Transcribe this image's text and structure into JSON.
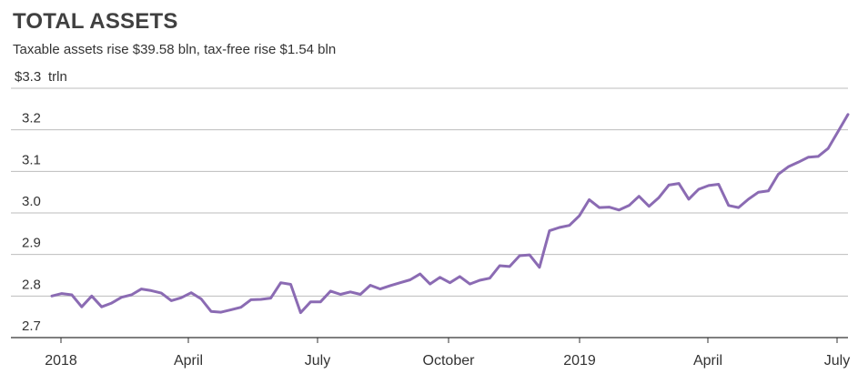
{
  "chart_data": {
    "type": "line",
    "title": "TOTAL ASSETS",
    "subtitle": "Taxable assets rise $39.58 bln, tax-free rise $1.54 bln",
    "y_unit_label": "trln",
    "y_tick_labels": [
      "2.7",
      "2.8",
      "2.9",
      "3.0",
      "3.1",
      "3.2",
      "$3.3"
    ],
    "y_ticks": [
      2.7,
      2.8,
      2.9,
      3.0,
      3.1,
      3.2,
      3.3
    ],
    "ylim": [
      2.7,
      3.3
    ],
    "x_tick_labels": [
      "2018",
      "April",
      "July",
      "October",
      "2019",
      "April",
      "July"
    ],
    "grid": true,
    "colors": {
      "line": "#8b6bb3",
      "grid": "#bdbdbd",
      "axis": "#333333"
    },
    "series": [
      {
        "name": "",
        "values": [
          2.8,
          2.806,
          2.803,
          2.774,
          2.8,
          2.774,
          2.783,
          2.797,
          2.803,
          2.817,
          2.813,
          2.807,
          2.789,
          2.796,
          2.808,
          2.793,
          2.763,
          2.761,
          2.767,
          2.773,
          2.791,
          2.792,
          2.795,
          2.832,
          2.828,
          2.76,
          2.786,
          2.786,
          2.812,
          2.804,
          2.81,
          2.804,
          2.826,
          2.817,
          2.825,
          2.832,
          2.839,
          2.853,
          2.829,
          2.845,
          2.832,
          2.847,
          2.829,
          2.838,
          2.843,
          2.873,
          2.871,
          2.897,
          2.899,
          2.869,
          2.957,
          2.965,
          2.97,
          2.993,
          3.032,
          3.013,
          3.014,
          3.007,
          3.018,
          3.04,
          3.016,
          3.037,
          3.067,
          3.071,
          3.033,
          3.057,
          3.066,
          3.069,
          3.018,
          3.013,
          3.033,
          3.05,
          3.053,
          3.093,
          3.111,
          3.122,
          3.134,
          3.136,
          3.155,
          3.196,
          3.237
        ]
      }
    ]
  }
}
